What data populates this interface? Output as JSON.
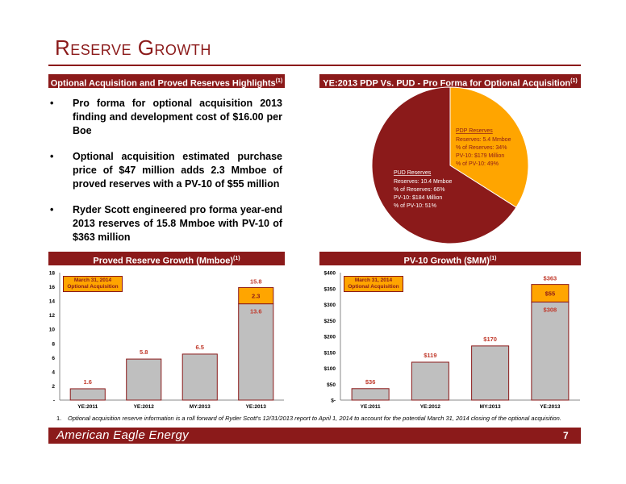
{
  "title": "Reserve Growth",
  "headers": {
    "left_top": "Optional Acquisition and Proved Reserves Highlights",
    "right_top": "YE:2013 PDP Vs. PUD - Pro Forma for Optional Acquisition",
    "left_bottom": "Proved Reserve Growth (Mmboe)",
    "right_bottom": "PV-10 Growth ($MM)",
    "footnote_marker": "(1)"
  },
  "bullets": [
    "Pro forma for optional acquisition 2013 finding and development cost of $16.00 per Boe",
    "Optional acquisition estimated purchase price of $47 million adds 2.3 Mmboe of proved reserves with a PV-10 of $55 million",
    "Ryder Scott engineered pro forma year-end 2013 reserves of 15.8 Mmboe with PV-10 of $363 million"
  ],
  "pie": {
    "pdp": {
      "title": "PDP Reserves",
      "lines": [
        "Reserves: 5.4 Mmboe",
        "% of Reserves: 34%",
        "PV-10: $179 Million",
        "% of PV-10: 49%"
      ],
      "share": 0.34,
      "color": "#ffa500"
    },
    "pud": {
      "title": "PUD Reserves",
      "lines": [
        "Reserves: 10.4 Mmboe",
        "% of Reserves: 66%",
        "PV-10: $184 Million",
        "% of PV-10: 51%"
      ],
      "share": 0.66,
      "color": "#8b1a1a"
    }
  },
  "callout": [
    "March 31, 2014",
    "Optional Acquisition"
  ],
  "chart_data": [
    {
      "type": "bar",
      "title": "Proved Reserve Growth (Mmboe)",
      "categories": [
        "YE:2011",
        "YE:2012",
        "MY:2013",
        "YE:2013"
      ],
      "series": [
        {
          "values": [
            1.6,
            5.8,
            6.5,
            13.6
          ],
          "color": "#bfbfbf"
        },
        {
          "values": [
            0,
            0,
            0,
            2.3
          ],
          "color": "#ffa500"
        }
      ],
      "labels": [
        "1.6",
        "5.8",
        "6.5",
        "13.6"
      ],
      "top_label": "2.3",
      "total_label": "15.8",
      "yticks": [
        "-",
        "2",
        "4",
        "6",
        "8",
        "10",
        "12",
        "14",
        "16",
        "18"
      ],
      "ylim": [
        0,
        18
      ]
    },
    {
      "type": "bar",
      "title": "PV-10 Growth ($MM)",
      "categories": [
        "YE:2011",
        "YE:2012",
        "MY:2013",
        "YE:2013"
      ],
      "series": [
        {
          "values": [
            36,
            119,
            170,
            308
          ],
          "color": "#bfbfbf"
        },
        {
          "values": [
            0,
            0,
            0,
            55
          ],
          "color": "#ffa500"
        }
      ],
      "labels": [
        "$36",
        "$119",
        "$170",
        "$308"
      ],
      "top_label": "$55",
      "total_label": "$363",
      "yticks": [
        "$-",
        "$50",
        "$100",
        "$150",
        "$200",
        "$250",
        "$300",
        "$350",
        "$400"
      ],
      "ylim": [
        0,
        400
      ]
    }
  ],
  "footnote": {
    "num": "1.",
    "text": "Optional acquisition reserve information is a roll forward of Ryder Scott's 12/31/2013 report to April 1, 2014 to account for the potential March 31, 2014 closing of the optional acquisition."
  },
  "footer": {
    "brand": "American Eagle Energy",
    "page": "7"
  },
  "colors": {
    "maroon": "#8b1a1a",
    "orange": "#ffa500",
    "gray": "#bfbfbf"
  }
}
